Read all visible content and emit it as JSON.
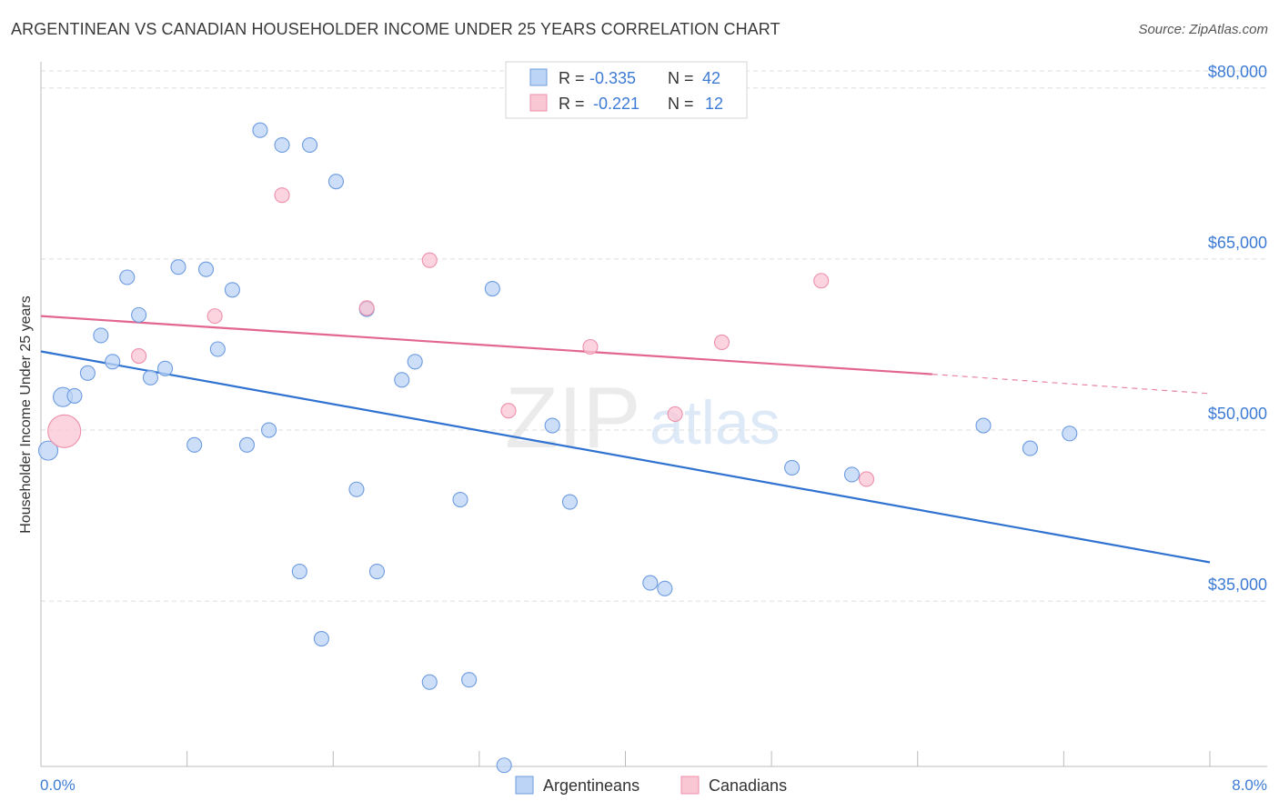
{
  "header": {
    "title": "ARGENTINEAN VS CANADIAN HOUSEHOLDER INCOME UNDER 25 YEARS CORRELATION CHART",
    "source": "Source: ZipAtlas.com"
  },
  "watermark": {
    "zip": "ZIP",
    "atlas": "atlas"
  },
  "legend_top": {
    "rows": [
      {
        "r_label": "R =",
        "r_value": "-0.335",
        "n_label": "N =",
        "n_value": "42"
      },
      {
        "r_label": "R =",
        "r_value": "-0.221",
        "n_label": "N =",
        "n_value": "12"
      }
    ]
  },
  "legend_bottom": {
    "items": [
      "Argentineans",
      "Canadians"
    ]
  },
  "colors": {
    "argentineans_fill": "#bcd4f5",
    "argentineans_stroke": "#6d9be0",
    "argentineans_line": "#2f72d0",
    "canadians_fill": "#f9c6d4",
    "canadians_stroke": "#ee8fab",
    "canadians_line": "#e3668e",
    "value_blue": "#3d7bd4",
    "grid": "#dddddd",
    "axis": "#bbbbbb"
  },
  "chart_data": {
    "type": "scatter",
    "title": "ARGENTINEAN VS CANADIAN HOUSEHOLDER INCOME UNDER 25 YEARS CORRELATION CHART",
    "xlabel": "",
    "ylabel": "Householder Income Under 25 years",
    "xlim": [
      0,
      8
    ],
    "ylim": [
      20500,
      81500
    ],
    "x_tick_labels": [
      "0.0%",
      "8.0%"
    ],
    "y_ticks": [
      35000,
      50000,
      65000,
      80000
    ],
    "y_tick_labels": [
      "$35,000",
      "$50,000",
      "$65,000",
      "$80,000"
    ],
    "grid": true,
    "legend_placement": "top-center and bottom",
    "series": [
      {
        "name": "Argentineans",
        "r": -0.335,
        "n": 42,
        "trend": {
          "x": [
            0,
            8
          ],
          "y": [
            56900,
            38400
          ]
        },
        "points": [
          {
            "x": 0.05,
            "y": 48200,
            "big": true
          },
          {
            "x": 0.15,
            "y": 52900,
            "big": true
          },
          {
            "x": 0.23,
            "y": 53000
          },
          {
            "x": 0.32,
            "y": 55000
          },
          {
            "x": 0.41,
            "y": 58300
          },
          {
            "x": 0.49,
            "y": 56000
          },
          {
            "x": 0.59,
            "y": 63400
          },
          {
            "x": 0.67,
            "y": 60100
          },
          {
            "x": 0.75,
            "y": 54600
          },
          {
            "x": 0.85,
            "y": 55400
          },
          {
            "x": 0.94,
            "y": 64300
          },
          {
            "x": 1.05,
            "y": 48700
          },
          {
            "x": 1.13,
            "y": 64100
          },
          {
            "x": 1.21,
            "y": 57100
          },
          {
            "x": 1.31,
            "y": 62300
          },
          {
            "x": 1.41,
            "y": 48700
          },
          {
            "x": 1.5,
            "y": 76300
          },
          {
            "x": 1.56,
            "y": 50000
          },
          {
            "x": 1.65,
            "y": 75000
          },
          {
            "x": 1.77,
            "y": 37600
          },
          {
            "x": 1.84,
            "y": 75000
          },
          {
            "x": 1.92,
            "y": 31700
          },
          {
            "x": 2.02,
            "y": 71800
          },
          {
            "x": 2.16,
            "y": 44800
          },
          {
            "x": 2.23,
            "y": 60600
          },
          {
            "x": 2.3,
            "y": 37600
          },
          {
            "x": 2.47,
            "y": 54400
          },
          {
            "x": 2.56,
            "y": 56000
          },
          {
            "x": 2.66,
            "y": 27900
          },
          {
            "x": 2.87,
            "y": 43900
          },
          {
            "x": 2.93,
            "y": 28100
          },
          {
            "x": 3.09,
            "y": 62400
          },
          {
            "x": 3.17,
            "y": 20600
          },
          {
            "x": 3.5,
            "y": 50400
          },
          {
            "x": 3.62,
            "y": 43700
          },
          {
            "x": 4.17,
            "y": 36600
          },
          {
            "x": 4.27,
            "y": 36100
          },
          {
            "x": 5.14,
            "y": 46700
          },
          {
            "x": 5.55,
            "y": 46100
          },
          {
            "x": 6.45,
            "y": 50400
          },
          {
            "x": 6.77,
            "y": 48400
          },
          {
            "x": 7.04,
            "y": 49700
          }
        ]
      },
      {
        "name": "Canadians",
        "r": -0.221,
        "n": 12,
        "trend": {
          "x": [
            0,
            6.1
          ],
          "y": [
            60000,
            54900
          ],
          "dash_to": {
            "x": 8,
            "y": 53200
          }
        },
        "points": [
          {
            "x": 0.16,
            "y": 49900,
            "huge": true
          },
          {
            "x": 0.67,
            "y": 56500
          },
          {
            "x": 1.19,
            "y": 60000
          },
          {
            "x": 1.65,
            "y": 70600
          },
          {
            "x": 2.23,
            "y": 60700
          },
          {
            "x": 2.66,
            "y": 64900
          },
          {
            "x": 3.2,
            "y": 51700
          },
          {
            "x": 3.76,
            "y": 57300
          },
          {
            "x": 4.34,
            "y": 51400
          },
          {
            "x": 4.66,
            "y": 57700
          },
          {
            "x": 5.34,
            "y": 63100
          },
          {
            "x": 5.65,
            "y": 45700
          }
        ]
      }
    ]
  }
}
